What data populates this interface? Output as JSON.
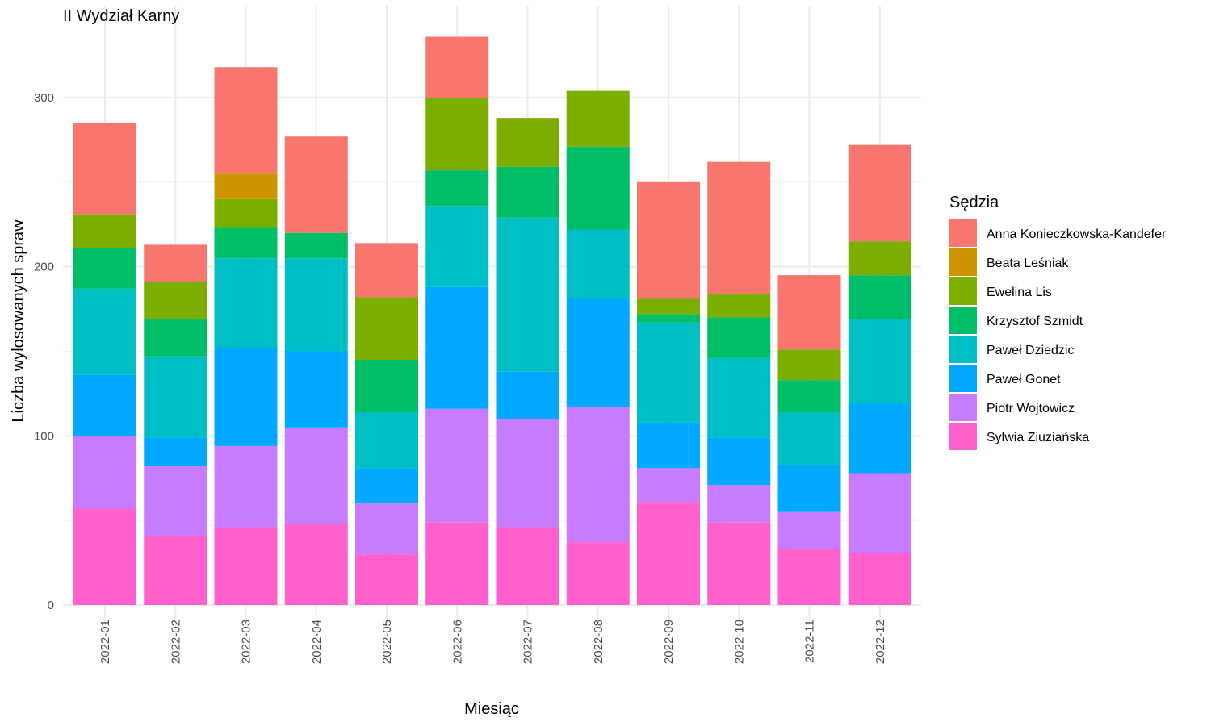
{
  "chart_data": {
    "type": "bar",
    "stacked": true,
    "title": "II Wydział Karny",
    "xlabel": "Miesiąc",
    "ylabel": "Liczba wylosowanych spraw",
    "ylim": [
      0,
      340
    ],
    "yticks": [
      0,
      100,
      200,
      300
    ],
    "grid": true,
    "legend_title": "Sędzia",
    "legend_position": "right",
    "categories": [
      "2022-01",
      "2022-02",
      "2022-03",
      "2022-04",
      "2022-05",
      "2022-06",
      "2022-07",
      "2022-08",
      "2022-09",
      "2022-10",
      "2022-11",
      "2022-12"
    ],
    "series": [
      {
        "name": "Sylwia Ziuziańska",
        "color": "#FF61CC",
        "values": [
          57,
          41,
          46,
          48,
          30,
          49,
          46,
          37,
          61,
          49,
          33,
          31
        ]
      },
      {
        "name": "Piotr Wojtowicz",
        "color": "#C77CFF",
        "values": [
          43,
          41,
          48,
          57,
          30,
          67,
          64,
          80,
          20,
          22,
          22,
          47
        ]
      },
      {
        "name": "Paweł Gonet",
        "color": "#00A9FF",
        "values": [
          36,
          17,
          58,
          45,
          21,
          72,
          28,
          64,
          27,
          28,
          28,
          41
        ]
      },
      {
        "name": "Paweł Dziedzic",
        "color": "#00BFC4",
        "values": [
          51,
          48,
          53,
          55,
          33,
          48,
          91,
          41,
          59,
          47,
          31,
          50
        ]
      },
      {
        "name": "Krzysztof Szmidt",
        "color": "#00BE67",
        "values": [
          24,
          22,
          18,
          15,
          31,
          21,
          30,
          49,
          5,
          24,
          19,
          26
        ]
      },
      {
        "name": "Ewelina Lis",
        "color": "#7CAE00",
        "values": [
          20,
          22,
          17,
          0,
          37,
          43,
          29,
          33,
          9,
          14,
          18,
          20
        ]
      },
      {
        "name": "Beata Leśniak",
        "color": "#CD9600",
        "values": [
          0,
          0,
          15,
          0,
          0,
          0,
          0,
          0,
          0,
          0,
          0,
          0
        ]
      },
      {
        "name": "Anna Konieczkowska-Kandefer",
        "color": "#F8766D",
        "values": [
          54,
          22,
          63,
          57,
          32,
          36,
          0,
          0,
          69,
          78,
          44,
          57
        ]
      }
    ],
    "legend_order": [
      "Anna Konieczkowska-Kandefer",
      "Beata Leśniak",
      "Ewelina Lis",
      "Krzysztof Szmidt",
      "Paweł Dziedzic",
      "Paweł Gonet",
      "Piotr Wojtowicz",
      "Sylwia Ziuziańska"
    ]
  }
}
